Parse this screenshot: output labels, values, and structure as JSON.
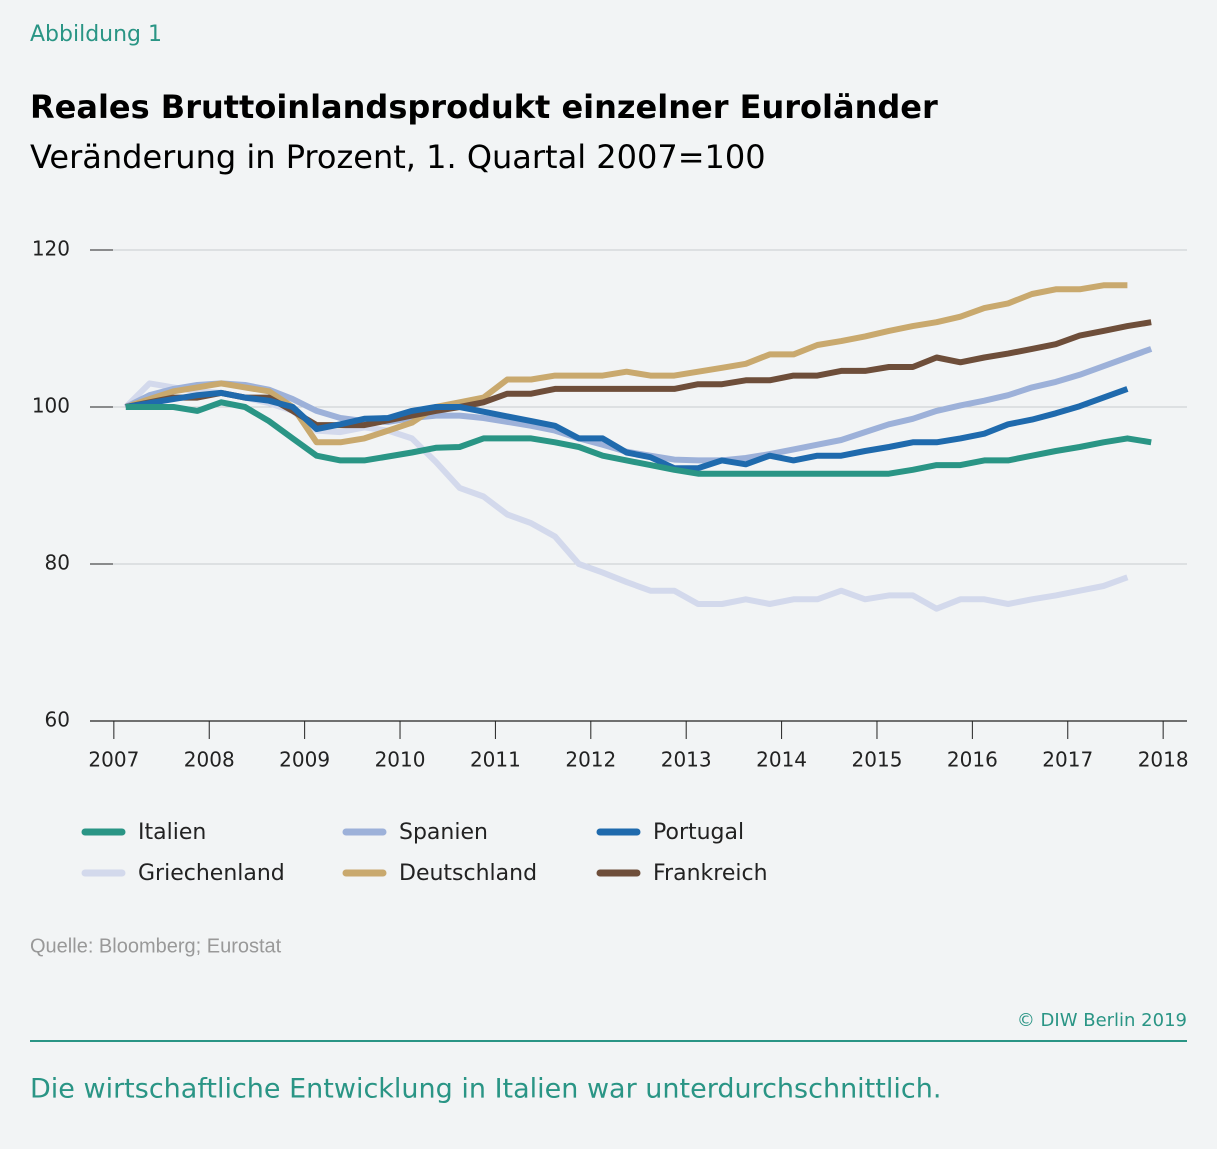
{
  "chart_data": {
    "type": "line",
    "figure_label": "Abbildung 1",
    "title": "Reales Bruttoinlandsprodukt einzelner Euroländer",
    "subtitle": "Veränderung in Prozent, 1. Quartal 2007=100",
    "source": "Quelle: Bloomberg; Eurostat",
    "copyright": "© DIW Berlin 2019",
    "caption": "Die wirtschaftliche Entwicklung in Italien war unterdurchschnittlich.",
    "x": [
      2007.125,
      2007.375,
      2007.625,
      2007.875,
      2008.125,
      2008.375,
      2008.625,
      2008.875,
      2009.125,
      2009.375,
      2009.625,
      2009.875,
      2010.125,
      2010.375,
      2010.625,
      2010.875,
      2011.125,
      2011.375,
      2011.625,
      2011.875,
      2012.125,
      2012.375,
      2012.625,
      2012.875,
      2013.125,
      2013.375,
      2013.625,
      2013.875,
      2014.125,
      2014.375,
      2014.625,
      2014.875,
      2015.125,
      2015.375,
      2015.625,
      2015.875,
      2016.125,
      2016.375,
      2016.625,
      2016.875,
      2017.125,
      2017.375,
      2017.625,
      2017.875
    ],
    "xlim": [
      2006.75,
      2018.25
    ],
    "xticks": [
      2007,
      2008,
      2009,
      2010,
      2011,
      2012,
      2013,
      2014,
      2015,
      2016,
      2017,
      2018
    ],
    "ylim": [
      60,
      120
    ],
    "yticks": [
      60,
      80,
      100,
      120
    ],
    "grid": true,
    "series": [
      {
        "name": "Italien",
        "color": "#2a9585",
        "values": [
          100,
          100,
          100,
          99.5,
          100.6,
          100,
          98.2,
          96,
          93.8,
          93.2,
          93.2,
          93.7,
          94.2,
          94.8,
          94.9,
          96,
          96,
          96,
          95.5,
          94.9,
          93.8,
          93.2,
          92.6,
          92,
          91.5,
          91.5,
          91.5,
          91.5,
          91.5,
          91.5,
          91.5,
          91.5,
          91.5,
          92,
          92.6,
          92.6,
          93.2,
          93.2,
          93.8,
          94.4,
          94.9,
          95.5,
          96,
          95.5
        ]
      },
      {
        "name": "Spanien",
        "color": "#9db1d9",
        "values": [
          100,
          101.5,
          102.3,
          102.8,
          103,
          102.8,
          102.2,
          101,
          99.5,
          98.6,
          98.2,
          98.1,
          98.6,
          98.9,
          98.9,
          98.6,
          98.1,
          97.6,
          97,
          96,
          95.2,
          94.3,
          93.8,
          93.3,
          93.2,
          93.2,
          93.5,
          94,
          94.6,
          95.2,
          95.8,
          96.8,
          97.8,
          98.5,
          99.5,
          100.2,
          100.8,
          101.5,
          102.5,
          103.2,
          104.1,
          105.2,
          106.3,
          107.4
        ]
      },
      {
        "name": "Portugal",
        "color": "#1f6aad",
        "values": [
          100,
          100.5,
          101,
          101.5,
          101.8,
          101.2,
          100.8,
          100,
          97.2,
          97.8,
          98.5,
          98.6,
          99.5,
          100,
          100,
          99.4,
          98.8,
          98.2,
          97.6,
          96,
          96,
          94.2,
          93.6,
          92.2,
          92.2,
          93.2,
          92.7,
          93.8,
          93.2,
          93.8,
          93.8,
          94.4,
          94.9,
          95.5,
          95.5,
          96,
          96.6,
          97.8,
          98.4,
          99.2,
          100.1,
          101.2,
          102.3,
          null
        ]
      },
      {
        "name": "Griechenland",
        "color": "#d3d9ec",
        "values": [
          100,
          103,
          102.5,
          102,
          101.8,
          101.2,
          100.5,
          99.5,
          97,
          96.8,
          97.4,
          97,
          96,
          93,
          89.7,
          88.6,
          86.3,
          85.2,
          83.5,
          80,
          78.9,
          77.7,
          76.6,
          76.6,
          74.9,
          74.9,
          75.5,
          74.9,
          75.5,
          75.5,
          76.6,
          75.5,
          76,
          76,
          74.3,
          75.5,
          75.5,
          74.9,
          75.5,
          76,
          76.6,
          77.2,
          78.3,
          null
        ]
      },
      {
        "name": "Deutschland",
        "color": "#c9a96e",
        "values": [
          100,
          101,
          102,
          102.5,
          103,
          102.5,
          102,
          100,
          95.5,
          95.5,
          96,
          97,
          98,
          100,
          100.6,
          101.2,
          103.5,
          103.5,
          104,
          104,
          104,
          104.5,
          104,
          104,
          104.5,
          105,
          105.5,
          106.7,
          106.7,
          107.9,
          108.4,
          109,
          109.7,
          110.3,
          110.8,
          111.5,
          112.6,
          113.2,
          114.4,
          115,
          115,
          115.5,
          115.5,
          null
        ]
      },
      {
        "name": "Frankreich",
        "color": "#6e4e3a",
        "values": [
          100,
          100.6,
          101.2,
          101.2,
          101.8,
          101.2,
          101.2,
          99.5,
          97.7,
          97.7,
          97.7,
          98.3,
          98.9,
          99.5,
          100,
          100.6,
          101.7,
          101.7,
          102.3,
          102.3,
          102.3,
          102.3,
          102.3,
          102.3,
          102.9,
          102.9,
          103.4,
          103.4,
          104,
          104,
          104.6,
          104.6,
          105.1,
          105.1,
          106.3,
          105.7,
          106.3,
          106.8,
          107.4,
          108,
          109.1,
          109.7,
          110.3,
          110.8
        ]
      }
    ]
  }
}
